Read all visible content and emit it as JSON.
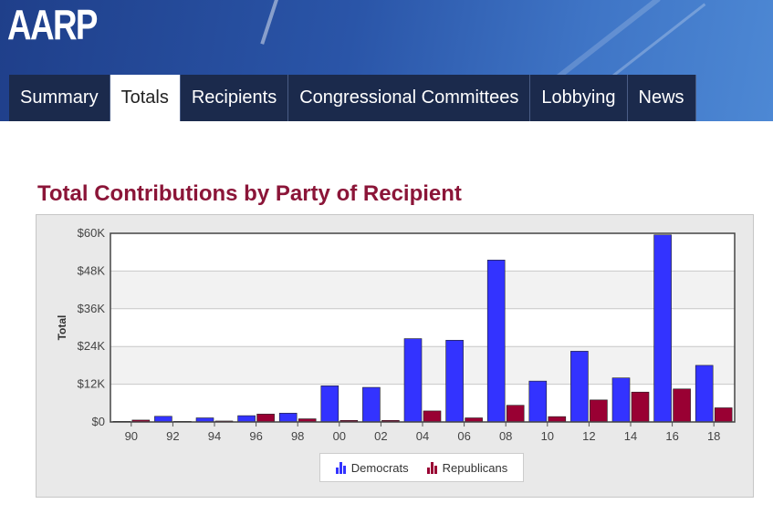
{
  "header": {
    "logo_text": "AARP",
    "tabs": [
      {
        "label": "Summary",
        "active": false
      },
      {
        "label": "Totals",
        "active": true
      },
      {
        "label": "Recipients",
        "active": false
      },
      {
        "label": "Congressional Committees",
        "active": false
      },
      {
        "label": "Lobbying",
        "active": false
      },
      {
        "label": "News",
        "active": false
      }
    ]
  },
  "colors": {
    "democrats": "#3333ff",
    "republicans": "#990033",
    "title": "#8b1538",
    "nav": "#1b2a4c"
  },
  "chart_data": {
    "type": "bar",
    "title": "Total Contributions by Party of Recipient",
    "xlabel": "",
    "ylabel": "Total",
    "ylim": [
      0,
      60000
    ],
    "yticks": [
      0,
      12000,
      24000,
      36000,
      48000,
      60000
    ],
    "ytick_labels": [
      "$0",
      "$12K",
      "$24K",
      "$36K",
      "$48K",
      "$60K"
    ],
    "categories": [
      "90",
      "92",
      "94",
      "96",
      "98",
      "00",
      "02",
      "04",
      "06",
      "08",
      "10",
      "12",
      "14",
      "16",
      "18"
    ],
    "series": [
      {
        "name": "Democrats",
        "values": [
          200,
          1800,
          1300,
          2000,
          2800,
          11500,
          11000,
          26500,
          26000,
          51500,
          13000,
          22500,
          14000,
          59500,
          18000
        ]
      },
      {
        "name": "Republicans",
        "values": [
          600,
          200,
          300,
          2500,
          1000,
          500,
          500,
          3500,
          1300,
          5300,
          1700,
          7000,
          9500,
          10500,
          4500
        ]
      }
    ],
    "legend": [
      "Democrats",
      "Republicans"
    ],
    "legend_position": "bottom-center"
  }
}
